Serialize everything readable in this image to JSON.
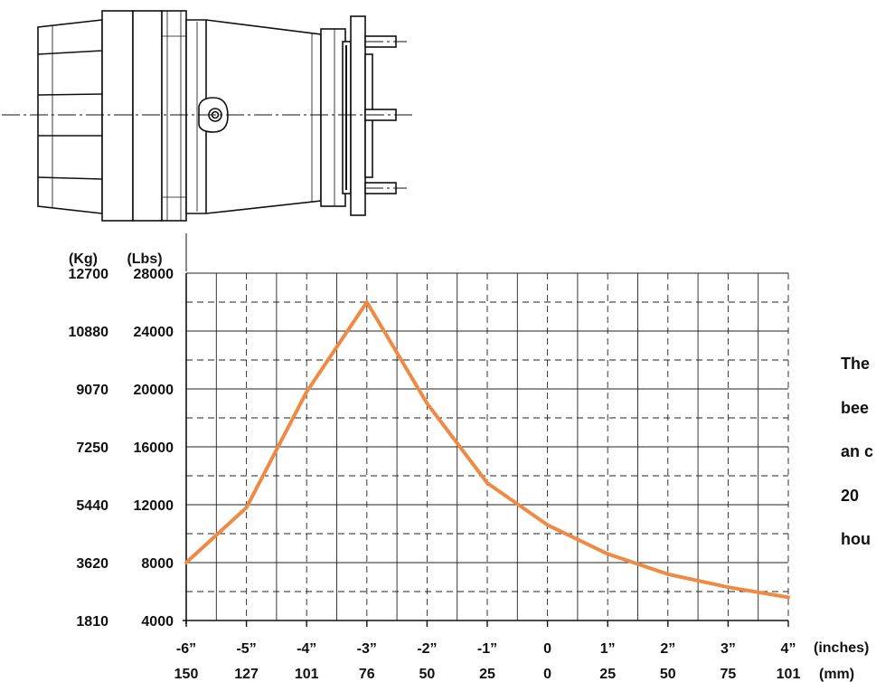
{
  "chart_data": {
    "type": "line",
    "title": "",
    "y_unit_kg_label": "(Kg)",
    "y_unit_lbs_label": "(Lbs)",
    "x_unit_inches_label": "(inches)",
    "x_unit_mm_label": "(mm)",
    "x_ticks_inches": [
      "-6”",
      "-5”",
      "-4”",
      "-3”",
      "-2”",
      "-1”",
      "0",
      "1”",
      "2”",
      "3”",
      "4”"
    ],
    "x_ticks_mm": [
      "150",
      "127",
      "101",
      "76",
      "50",
      "25",
      "0",
      "25",
      "50",
      "75",
      "101"
    ],
    "y_ticks_lbs": [
      "4000",
      "8000",
      "12000",
      "16000",
      "20000",
      "24000",
      "28000"
    ],
    "y_ticks_kg": [
      "1810",
      "3620",
      "5440",
      "7250",
      "9070",
      "10880",
      "12700"
    ],
    "xlim": [
      -6,
      4
    ],
    "ylim": [
      4000,
      28000
    ],
    "grid": true,
    "line_color": "#ee8a44",
    "series": [
      {
        "x": [
          -6,
          -5,
          -4,
          -3,
          -2,
          -1,
          0,
          1,
          2,
          3,
          4
        ],
        "values": [
          8000,
          11800,
          19800,
          26000,
          19000,
          13500,
          10600,
          8600,
          7200,
          6300,
          5600
        ]
      }
    ]
  },
  "side_text": [
    "The",
    "bee",
    "an  c",
    "20",
    "hou"
  ]
}
